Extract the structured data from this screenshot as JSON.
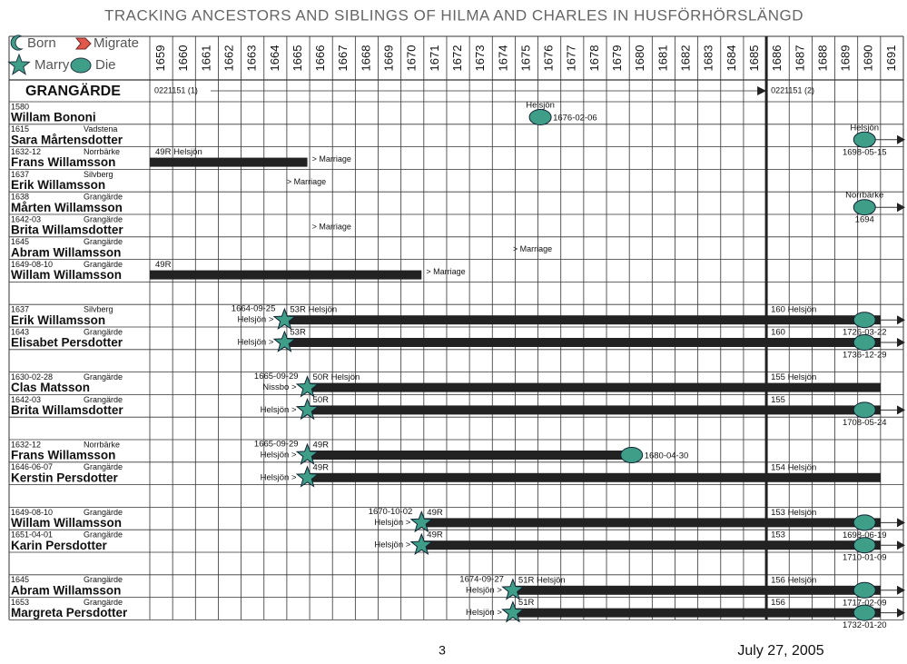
{
  "header": {
    "title": "TRACKING ANCESTORS AND SIBLINGS OF HILMA AND CHARLES IN HUSFÖRHÖRSLÄNGD"
  },
  "legend": [
    "Born",
    "Migrate",
    "Marry",
    "Die"
  ],
  "years": [
    1659,
    1660,
    1661,
    1662,
    1663,
    1664,
    1665,
    1666,
    1667,
    1668,
    1669,
    1670,
    1671,
    1672,
    1673,
    1674,
    1675,
    1676,
    1677,
    1678,
    1679,
    1680,
    1681,
    1682,
    1683,
    1684,
    1685,
    1686,
    1687,
    1688,
    1689,
    1690,
    1691
  ],
  "divider_year": 1686,
  "parish": {
    "name": "GRANGÄRDE",
    "start_text": "0221151 (1)",
    "end_text": "0221151 (2)"
  },
  "groups": [
    {
      "people": [
        {
          "born": "1580",
          "name": "Willam Bononi",
          "die": {
            "at": 1676.1,
            "above": "Helsjön",
            "right": "1676-02-06"
          }
        },
        {
          "born": "1615",
          "place": "Vadstena",
          "name": "Sara Mårtensdotter",
          "die": {
            "at": 1690.3,
            "above": "Helsjön",
            "below": "1698-05-15"
          },
          "arrow": true
        },
        {
          "born": "1632-12",
          "place": "Norrbärke",
          "name": "Frans Willamsson",
          "bar": {
            "from": 1659,
            "to": 1665.9,
            "label": "49R Helsjön"
          },
          "note": {
            "at": 1666.1,
            "text": "> Marriage"
          }
        },
        {
          "born": "1637",
          "place": "Silvberg",
          "name": "Erik Willamsson",
          "note": {
            "at": 1665,
            "text": "> Marriage"
          }
        },
        {
          "born": "1638",
          "place": "Grangärde",
          "name": "Mårten Willamsson",
          "die": {
            "at": 1690.3,
            "above": "Norrbärke",
            "below": "1694"
          },
          "arrow": true
        },
        {
          "born": "1642-03",
          "place": "Grangärde",
          "name": "Brita Willamsdotter",
          "note": {
            "at": 1666.1,
            "text": "> Marriage"
          }
        },
        {
          "born": "1645",
          "place": "Grangärde",
          "name": "Abram Willamsson",
          "note": {
            "at": 1674.9,
            "text": "> Marriage"
          }
        },
        {
          "born": "1649-08-10",
          "place": "Grangärde",
          "name": "Willam Willamsson",
          "bar": {
            "from": 1659,
            "to": 1670.9,
            "label": "49R"
          },
          "note": {
            "at": 1671.1,
            "text": "> Marriage"
          }
        }
      ]
    },
    {
      "people": [
        {
          "born": "1637",
          "place": "Silvberg",
          "name": "Erik Willamsson",
          "star": {
            "at": 1664.9,
            "date": "1664-09-25",
            "from": "Helsjön >"
          },
          "bar": {
            "from": 1664.9,
            "to": 1691,
            "label": "53R Helsjön"
          },
          "mid": {
            "at": 1686,
            "text": "160 Helsjön"
          },
          "die": {
            "at": 1690.3,
            "below": "1726-03-22"
          },
          "arrow": true
        },
        {
          "born": "1643",
          "place": "Grangärde",
          "name": "Elisabet Persdotter",
          "star": {
            "at": 1664.9,
            "from": "Helsjön >"
          },
          "bar": {
            "from": 1664.9,
            "to": 1691,
            "label": "53R"
          },
          "mid": {
            "at": 1686,
            "text": "160"
          },
          "die": {
            "at": 1690.3,
            "below": "1736-12-29"
          },
          "arrow": true
        }
      ]
    },
    {
      "people": [
        {
          "born": "1630-02-28",
          "place": "Grangärde",
          "name": "Clas Matsson",
          "star": {
            "at": 1665.9,
            "date": "1665-09-29",
            "from": "Nissbo >"
          },
          "bar": {
            "from": 1665.9,
            "to": 1691,
            "label": "50R Helsjön"
          },
          "mid": {
            "at": 1686,
            "text": "155 Helsjön"
          }
        },
        {
          "born": "1642-03",
          "place": "Grangärde",
          "name": "Brita Willamsdotter",
          "star": {
            "at": 1665.9,
            "from": "Helsjön >"
          },
          "bar": {
            "from": 1665.9,
            "to": 1691,
            "label": "50R"
          },
          "mid": {
            "at": 1686,
            "text": "155"
          },
          "die": {
            "at": 1690.3,
            "below": "1708-05-24"
          },
          "arrow": true
        }
      ]
    },
    {
      "people": [
        {
          "born": "1632-12",
          "place": "Norrbärke",
          "name": "Frans Willamsson",
          "star": {
            "at": 1665.9,
            "date": "1665-09-29",
            "from": "Helsjön >"
          },
          "bar": {
            "from": 1665.9,
            "to": 1680.1,
            "label": "49R"
          },
          "die": {
            "at": 1680.1,
            "right": "1680-04-30"
          }
        },
        {
          "born": "1646-06-07",
          "place": "Grangärde",
          "name": "Kerstin Persdotter",
          "star": {
            "at": 1665.9,
            "from": "Helsjön >"
          },
          "bar": {
            "from": 1665.9,
            "to": 1691,
            "label": "49R"
          },
          "mid": {
            "at": 1686,
            "text": "154 Helsjön"
          }
        }
      ]
    },
    {
      "people": [
        {
          "born": "1649-08-10",
          "place": "Grangärde",
          "name": "Willam Willamsson",
          "star": {
            "at": 1670.9,
            "date": "1670-10-02",
            "from": "Helsjön >"
          },
          "bar": {
            "from": 1670.9,
            "to": 1691,
            "label": "49R"
          },
          "mid": {
            "at": 1686,
            "text": "153 Helsjön"
          },
          "die": {
            "at": 1690.3,
            "below": "1698-06-19"
          },
          "arrow": true
        },
        {
          "born": "1651-04-01",
          "place": "Grangärde",
          "name": "Karin Persdotter",
          "star": {
            "at": 1670.9,
            "from": "Helsjön >"
          },
          "bar": {
            "from": 1670.9,
            "to": 1691,
            "label": "49R"
          },
          "mid": {
            "at": 1686,
            "text": "153"
          },
          "die": {
            "at": 1690.3,
            "below": "1710-01-09"
          },
          "arrow": true
        }
      ]
    },
    {
      "people": [
        {
          "born": "1645",
          "place": "Grangärde",
          "name": "Abram Willamsson",
          "star": {
            "at": 1674.9,
            "date": "1674-09-27",
            "from": "Helsjön >"
          },
          "bar": {
            "from": 1674.9,
            "to": 1691,
            "label": "51R Helsjön"
          },
          "mid": {
            "at": 1686,
            "text": "156 Helsjön"
          },
          "die": {
            "at": 1690.3,
            "below": "1717-02-09"
          },
          "arrow": true
        },
        {
          "born": "1653",
          "place": "Grangärde",
          "name": "Margreta Persdotter",
          "star": {
            "at": 1674.9,
            "from": "Helsjön >"
          },
          "bar": {
            "from": 1674.9,
            "to": 1691,
            "label": "51R"
          },
          "mid": {
            "at": 1686,
            "text": "156"
          },
          "die": {
            "at": 1690.3,
            "below": "1732-01-20"
          },
          "arrow": true
        }
      ]
    }
  ],
  "footer": {
    "page": "3",
    "date": "July 27, 2005"
  }
}
